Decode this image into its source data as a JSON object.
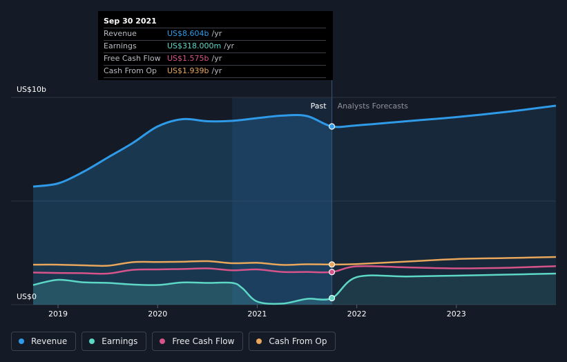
{
  "tooltip": {
    "date": "Sep 30 2021",
    "rows": [
      {
        "label": "Revenue",
        "value": "US$8.604b",
        "unit": "/yr",
        "color": "#2f9be8"
      },
      {
        "label": "Earnings",
        "value": "US$318.000m",
        "unit": "/yr",
        "color": "#5ed8c6"
      },
      {
        "label": "Free Cash Flow",
        "value": "US$1.575b",
        "unit": "/yr",
        "color": "#d6548a"
      },
      {
        "label": "Cash From Op",
        "value": "US$1.939b",
        "unit": "/yr",
        "color": "#e8a75a"
      }
    ]
  },
  "legend": [
    {
      "label": "Revenue",
      "color": "#2f9be8"
    },
    {
      "label": "Earnings",
      "color": "#5ed8c6"
    },
    {
      "label": "Free Cash Flow",
      "color": "#d6548a"
    },
    {
      "label": "Cash From Op",
      "color": "#e8a75a"
    }
  ],
  "chart_data": {
    "type": "line",
    "title": "",
    "ylabel": "",
    "xlabel": "",
    "y_axis_labels": [
      "US$10b",
      "US$0"
    ],
    "ylim": [
      0,
      10
    ],
    "xlim": [
      2018.75,
      2024.0
    ],
    "x_ticks": [
      2019,
      2020,
      2021,
      2022,
      2023
    ],
    "x_tick_labels": [
      "2019",
      "2020",
      "2021",
      "2022",
      "2023"
    ],
    "past_label": "Past",
    "forecast_label": "Analysts Forecasts",
    "split_x": 2021.75,
    "highlight_range": [
      2020.75,
      2021.75
    ],
    "series": [
      {
        "name": "Revenue",
        "color": "#2f9be8",
        "x": [
          2018.75,
          2019.0,
          2019.25,
          2019.5,
          2019.75,
          2020.0,
          2020.25,
          2020.5,
          2020.75,
          2021.0,
          2021.25,
          2021.5,
          2021.75,
          2022.0,
          2022.5,
          2023.0,
          2023.5,
          2024.0
        ],
        "values": [
          5.7,
          5.85,
          6.4,
          7.1,
          7.8,
          8.6,
          8.95,
          8.85,
          8.87,
          9.0,
          9.12,
          9.1,
          8.6,
          8.65,
          8.85,
          9.05,
          9.3,
          9.6
        ],
        "fill": true
      },
      {
        "name": "Earnings",
        "color": "#5ed8c6",
        "x": [
          2018.75,
          2019.0,
          2019.25,
          2019.5,
          2019.75,
          2020.0,
          2020.25,
          2020.5,
          2020.75,
          2020.85,
          2021.0,
          2021.25,
          2021.5,
          2021.75,
          2022.0,
          2022.5,
          2023.0,
          2023.5,
          2024.0
        ],
        "values": [
          0.95,
          1.2,
          1.08,
          1.05,
          0.97,
          0.95,
          1.07,
          1.05,
          1.05,
          0.8,
          0.15,
          0.05,
          0.28,
          0.318,
          1.33,
          1.36,
          1.4,
          1.45,
          1.5
        ],
        "fill": true
      },
      {
        "name": "Free Cash Flow",
        "color": "#d6548a",
        "x": [
          2018.75,
          2019.0,
          2019.25,
          2019.5,
          2019.75,
          2020.0,
          2020.25,
          2020.5,
          2020.75,
          2021.0,
          2021.25,
          2021.5,
          2021.75,
          2022.0,
          2022.5,
          2023.0,
          2023.5,
          2024.0
        ],
        "values": [
          1.55,
          1.53,
          1.52,
          1.5,
          1.68,
          1.7,
          1.72,
          1.75,
          1.66,
          1.7,
          1.58,
          1.58,
          1.575,
          1.85,
          1.8,
          1.75,
          1.78,
          1.86
        ],
        "fill": false
      },
      {
        "name": "Cash From Op",
        "color": "#e8a75a",
        "x": [
          2018.75,
          2019.0,
          2019.25,
          2019.5,
          2019.75,
          2020.0,
          2020.25,
          2020.5,
          2020.75,
          2021.0,
          2021.25,
          2021.5,
          2021.75,
          2022.0,
          2022.5,
          2023.0,
          2023.5,
          2024.0
        ],
        "values": [
          1.93,
          1.93,
          1.9,
          1.88,
          2.05,
          2.06,
          2.07,
          2.1,
          2.0,
          2.02,
          1.92,
          1.95,
          1.939,
          1.96,
          2.08,
          2.2,
          2.25,
          2.3
        ],
        "fill": false
      }
    ]
  }
}
